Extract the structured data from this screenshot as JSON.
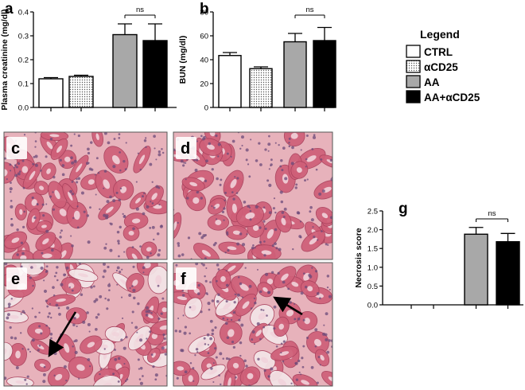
{
  "chart_data": [
    {
      "type": "bar",
      "panel_label": "a",
      "ylabel": "Plasma creatinine (mg/dl)",
      "ylim": [
        0,
        0.4
      ],
      "yticks": [
        "0.0",
        "0.1",
        "0.2",
        "0.3",
        "0.4"
      ],
      "categories": [
        "CTRL",
        "αCD25",
        "AA",
        "AA+αCD25"
      ],
      "values": [
        0.12,
        0.13,
        0.305,
        0.28
      ],
      "errors": [
        0.005,
        0.005,
        0.045,
        0.07
      ],
      "annotations": [
        {
          "text": "ns",
          "between": [
            2,
            3
          ]
        }
      ]
    },
    {
      "type": "bar",
      "panel_label": "b",
      "ylabel": "BUN (mg/dl)",
      "ylim": [
        0,
        80
      ],
      "yticks": [
        "0",
        "20",
        "40",
        "60",
        "80"
      ],
      "categories": [
        "CTRL",
        "αCD25",
        "AA",
        "AA+αCD25"
      ],
      "values": [
        43.5,
        32.5,
        55,
        56
      ],
      "errors": [
        2.5,
        1.5,
        7,
        11
      ],
      "annotations": [
        {
          "text": "ns",
          "between": [
            2,
            3
          ]
        }
      ]
    },
    {
      "type": "bar",
      "panel_label": "g",
      "ylabel": "Necrosis score",
      "ylim": [
        0,
        2.5
      ],
      "yticks": [
        "0.0",
        "0.5",
        "1.0",
        "1.5",
        "2.0",
        "2.5"
      ],
      "categories": [
        "CTRL",
        "αCD25",
        "AA",
        "AA+αCD25"
      ],
      "values": [
        0,
        0,
        1.88,
        1.68
      ],
      "errors": [
        0,
        0,
        0.18,
        0.22
      ],
      "annotations": [
        {
          "text": "ns",
          "between": [
            2,
            3
          ]
        }
      ]
    }
  ],
  "legend": {
    "title": "Legend",
    "items": [
      "CTRL",
      "αCD25",
      "AA",
      "AA+αCD25"
    ]
  },
  "series_styles": [
    {
      "fill": "#ffffff",
      "pattern": "none"
    },
    {
      "fill": "#ffffff",
      "pattern": "dots"
    },
    {
      "fill": "#a8a8a8",
      "pattern": "none"
    },
    {
      "fill": "#000000",
      "pattern": "none"
    }
  ],
  "micrographs": [
    {
      "label": "c",
      "has_arrow": false
    },
    {
      "label": "d",
      "has_arrow": false
    },
    {
      "label": "e",
      "has_arrow": true
    },
    {
      "label": "f",
      "has_arrow": true
    }
  ],
  "colors": {
    "tissue_base": "#e7b2bb",
    "tubule": "#cf5f78",
    "nuclei": "#6b4a7a",
    "lumen": "#f4e6e8"
  }
}
